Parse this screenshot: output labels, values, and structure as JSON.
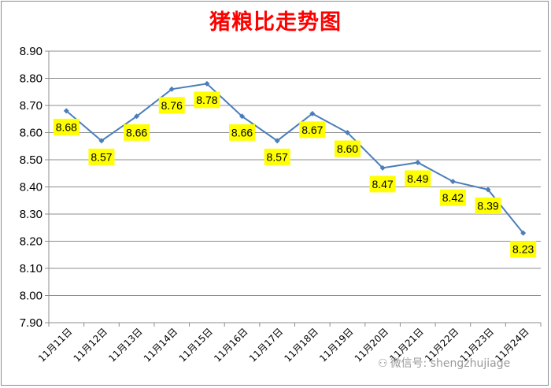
{
  "chart_data": {
    "type": "line",
    "title": "猪粮比走势图",
    "categories": [
      "11月11日",
      "11月12日",
      "11月13日",
      "11月14日",
      "11月15日",
      "11月16日",
      "11月17日",
      "11月18日",
      "11月19日",
      "11月20日",
      "11月21日",
      "11月22日",
      "11月23日",
      "11月24日"
    ],
    "values": [
      8.68,
      8.57,
      8.66,
      8.76,
      8.78,
      8.66,
      8.57,
      8.67,
      8.6,
      8.47,
      8.49,
      8.42,
      8.39,
      8.23
    ],
    "data_labels": [
      "8.68",
      "8.57",
      "8.66",
      "8.76",
      "8.78",
      "8.66",
      "8.57",
      "8.67",
      "8.60",
      "8.47",
      "8.49",
      "8.42",
      "8.39",
      "8.23"
    ],
    "y_ticks": [
      "7.90",
      "8.00",
      "8.10",
      "8.20",
      "8.30",
      "8.40",
      "8.50",
      "8.60",
      "8.70",
      "8.80",
      "8.90"
    ],
    "ylim": [
      7.9,
      8.9
    ],
    "grid": true,
    "line_color": "#4a7ebb",
    "label_bg_color": "#ffff00",
    "title_color": "#ff0000"
  },
  "watermark": {
    "icon": "wechat-icon",
    "text": "微信号: shengzhujiage"
  }
}
